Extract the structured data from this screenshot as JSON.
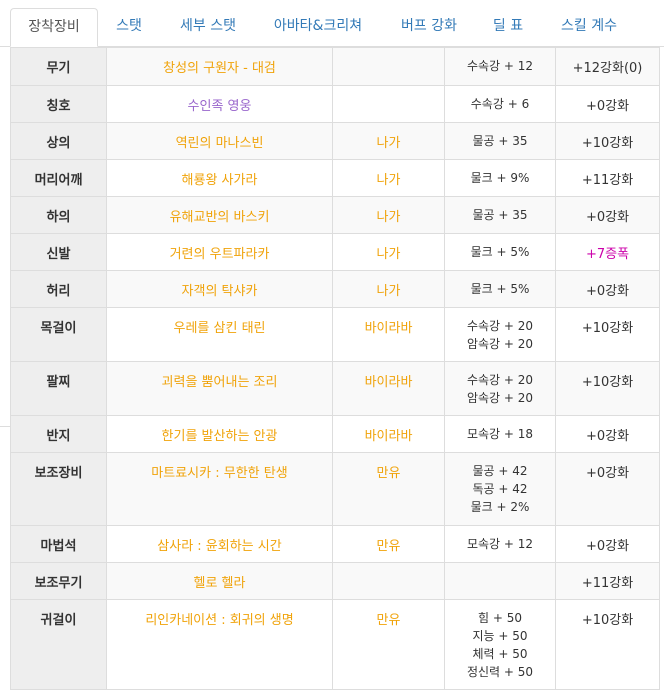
{
  "tabs": [
    {
      "label": "장착장비",
      "active": true
    },
    {
      "label": "스탯"
    },
    {
      "label": "세부 스탯"
    },
    {
      "label": "아바타&크리쳐"
    },
    {
      "label": "버프 강화"
    },
    {
      "label": "딜 표"
    },
    {
      "label": "스킬 계수"
    }
  ],
  "equipment": [
    {
      "slot": "무기",
      "item": "창성의 구원자 - 대검",
      "source": "",
      "stats": [
        "수속강 + 12"
      ],
      "enhance": "+12강화(0)"
    },
    {
      "slot": "칭호",
      "item": "수인족 영웅",
      "source": "",
      "stats": [
        "수속강 + 6"
      ],
      "enhance": "+0강화"
    },
    {
      "slot": "상의",
      "item": "역린의 마나스빈",
      "source": "나가",
      "stats": [
        "물공 + 35"
      ],
      "enhance": "+10강화"
    },
    {
      "slot": "머리어깨",
      "item": "해룡왕 사가라",
      "source": "나가",
      "stats": [
        "물크 + 9%"
      ],
      "enhance": "+11강화"
    },
    {
      "slot": "하의",
      "item": "유해교반의 바스키",
      "source": "나가",
      "stats": [
        "물공 + 35"
      ],
      "enhance": "+0강화"
    },
    {
      "slot": "신발",
      "item": "거련의 우트파라카",
      "source": "나가",
      "stats": [
        "물크 + 5%"
      ],
      "enhance": "+7증폭"
    },
    {
      "slot": "허리",
      "item": "자객의 탁샤카",
      "source": "나가",
      "stats": [
        "물크 + 5%"
      ],
      "enhance": "+0강화"
    },
    {
      "slot": "목걸이",
      "item": "우레를 삼킨 태린",
      "source": "바이라바",
      "stats": [
        "수속강 + 20",
        "암속강 + 20"
      ],
      "enhance": "+10강화"
    },
    {
      "slot": "팔찌",
      "item": "괴력을 뿜어내는 조리",
      "source": "바이라바",
      "stats": [
        "수속강 + 20",
        "암속강 + 20"
      ],
      "enhance": "+10강화"
    },
    {
      "slot": "반지",
      "item": "한기를 발산하는 안광",
      "source": "바이라바",
      "stats": [
        "모속강 + 18"
      ],
      "enhance": "+0강화"
    },
    {
      "slot": "보조장비",
      "item": "마트료시카 : 무한한 탄생",
      "source": "만유",
      "stats": [
        "물공 + 42",
        "독공 + 42",
        "물크 + 2%"
      ],
      "enhance": "+0강화"
    },
    {
      "slot": "마법석",
      "item": "삼사라 : 윤회하는 시간",
      "source": "만유",
      "stats": [
        "모속강 + 12"
      ],
      "enhance": "+0강화"
    },
    {
      "slot": "보조무기",
      "item": "헬로 헬라",
      "source": "",
      "stats": [],
      "enhance": "+11강화"
    },
    {
      "slot": "귀걸이",
      "item": "리인카네이션 : 회귀의 생명",
      "source": "만유",
      "stats": [
        "힘 + 50",
        "지능 + 50",
        "체력 + 50",
        "정신력 + 50"
      ],
      "enhance": "+10강화"
    }
  ],
  "colors": {
    "item": "#f0a30a",
    "title_item": "#9966cc",
    "amplify": "#cc00aa",
    "tab_link": "#337ab7"
  }
}
